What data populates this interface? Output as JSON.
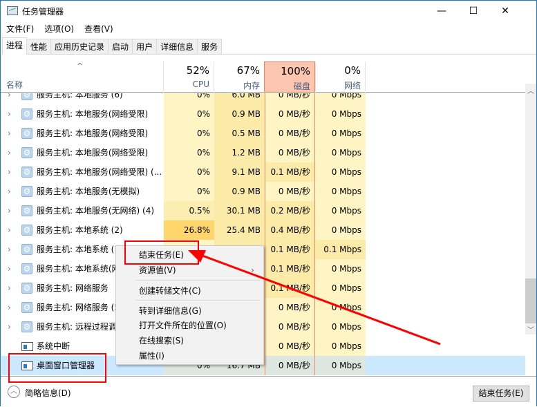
{
  "window": {
    "title": "任务管理器",
    "minimize": "—",
    "maximize": "☐",
    "close": "✕"
  },
  "menu": [
    "文件(F)",
    "选项(O)",
    "查看(V)"
  ],
  "tabs": [
    "进程",
    "性能",
    "应用历史记录",
    "启动",
    "用户",
    "详细信息",
    "服务"
  ],
  "header": {
    "name": "名称",
    "sort_icon": "^",
    "cpu": {
      "pct": "52%",
      "label": "CPU"
    },
    "mem": {
      "pct": "67%",
      "label": "内存"
    },
    "disk": {
      "pct": "100%",
      "label": "磁盘"
    },
    "net": {
      "pct": "0%",
      "label": "网络"
    }
  },
  "rows": [
    {
      "name": "服务主机: 本地服务 (6)",
      "icon": "gear",
      "cpu": "0%",
      "mem": "6.0 MB",
      "disk": "0 MB/秒",
      "net": "0 Mbps"
    },
    {
      "name": "服务主机: 本地服务(网络受限)",
      "icon": "gear",
      "cpu": "0%",
      "mem": "0.9 MB",
      "disk": "0 MB/秒",
      "net": "0 Mbps"
    },
    {
      "name": "服务主机: 本地服务(网络受限)",
      "icon": "gear",
      "cpu": "0%",
      "mem": "0.5 MB",
      "disk": "0 MB/秒",
      "net": "0 Mbps"
    },
    {
      "name": "服务主机: 本地服务(网络受限)",
      "icon": "gear",
      "cpu": "0%",
      "mem": "1.2 MB",
      "disk": "0 MB/秒",
      "net": "0 Mbps"
    },
    {
      "name": "服务主机: 本地服务(网络受限) (...",
      "icon": "gear",
      "cpu": "0%",
      "mem": "9.1 MB",
      "disk": "0.1 MB/秒",
      "net": "0 Mbps"
    },
    {
      "name": "服务主机: 本地服务(无模拟)",
      "icon": "gear",
      "cpu": "0%",
      "mem": "0.9 MB",
      "disk": "0 MB/秒",
      "net": "0 Mbps"
    },
    {
      "name": "服务主机: 本地服务(无网络) (4)",
      "icon": "gear",
      "cpu": "0.5%",
      "mem": "30.1 MB",
      "disk": "0.2 MB/秒",
      "net": "0 Mbps"
    },
    {
      "name": "服务主机: 本地系统 (2)",
      "icon": "gear",
      "cpu": "26.8%",
      "mem": "25.4 MB",
      "disk": "0.4 MB/秒",
      "net": "0 Mbps"
    },
    {
      "name": "服务主机: 本地系统 (1",
      "icon": "gear",
      "cpu": "",
      "mem": "",
      "disk": "0.1 MB/秒",
      "net": "0.1 Mbps"
    },
    {
      "name": "服务主机: 本地系统(网",
      "icon": "gear",
      "cpu": "",
      "mem": "",
      "disk": "0.1 MB/秒",
      "net": "0 Mbps"
    },
    {
      "name": "服务主机: 网络服务",
      "icon": "gear",
      "cpu": "",
      "mem": "",
      "disk": "0.1 MB/秒",
      "net": "0 Mbps"
    },
    {
      "name": "服务主机: 网络服务 (5",
      "icon": "gear",
      "cpu": "",
      "mem": "",
      "disk": "0 MB/秒",
      "net": "0 Mbps"
    },
    {
      "name": "服务主机: 远程过程调",
      "icon": "gear",
      "cpu": "",
      "mem": "",
      "disk": "0 MB/秒",
      "net": "0 Mbps"
    },
    {
      "name": "系统中断",
      "icon": "window",
      "cpu": "",
      "mem": "",
      "disk": "0 MB/秒",
      "net": "0 Mbps"
    },
    {
      "name": "桌面窗口管理器",
      "icon": "window",
      "cpu": "0%",
      "mem": "16.7 MB",
      "disk": "0 MB/秒",
      "net": "0 Mbps",
      "selected": true
    }
  ],
  "context_menu": {
    "items": [
      "结束任务(E)",
      "资源值(V)",
      "创建转储文件(C)",
      "转到详细信息(G)",
      "打开文件所在的位置(O)",
      "在线搜索(S)",
      "属性(I)"
    ],
    "submenu_arrow": "›"
  },
  "footer": {
    "brief": "简略信息(D)",
    "end_task": "结束任务(E)"
  },
  "colors": {
    "annotation": "#ff0000",
    "hot_header": "#fdc6b0",
    "cpu_high": "#ffd66b",
    "selected": "#cce8ff"
  }
}
